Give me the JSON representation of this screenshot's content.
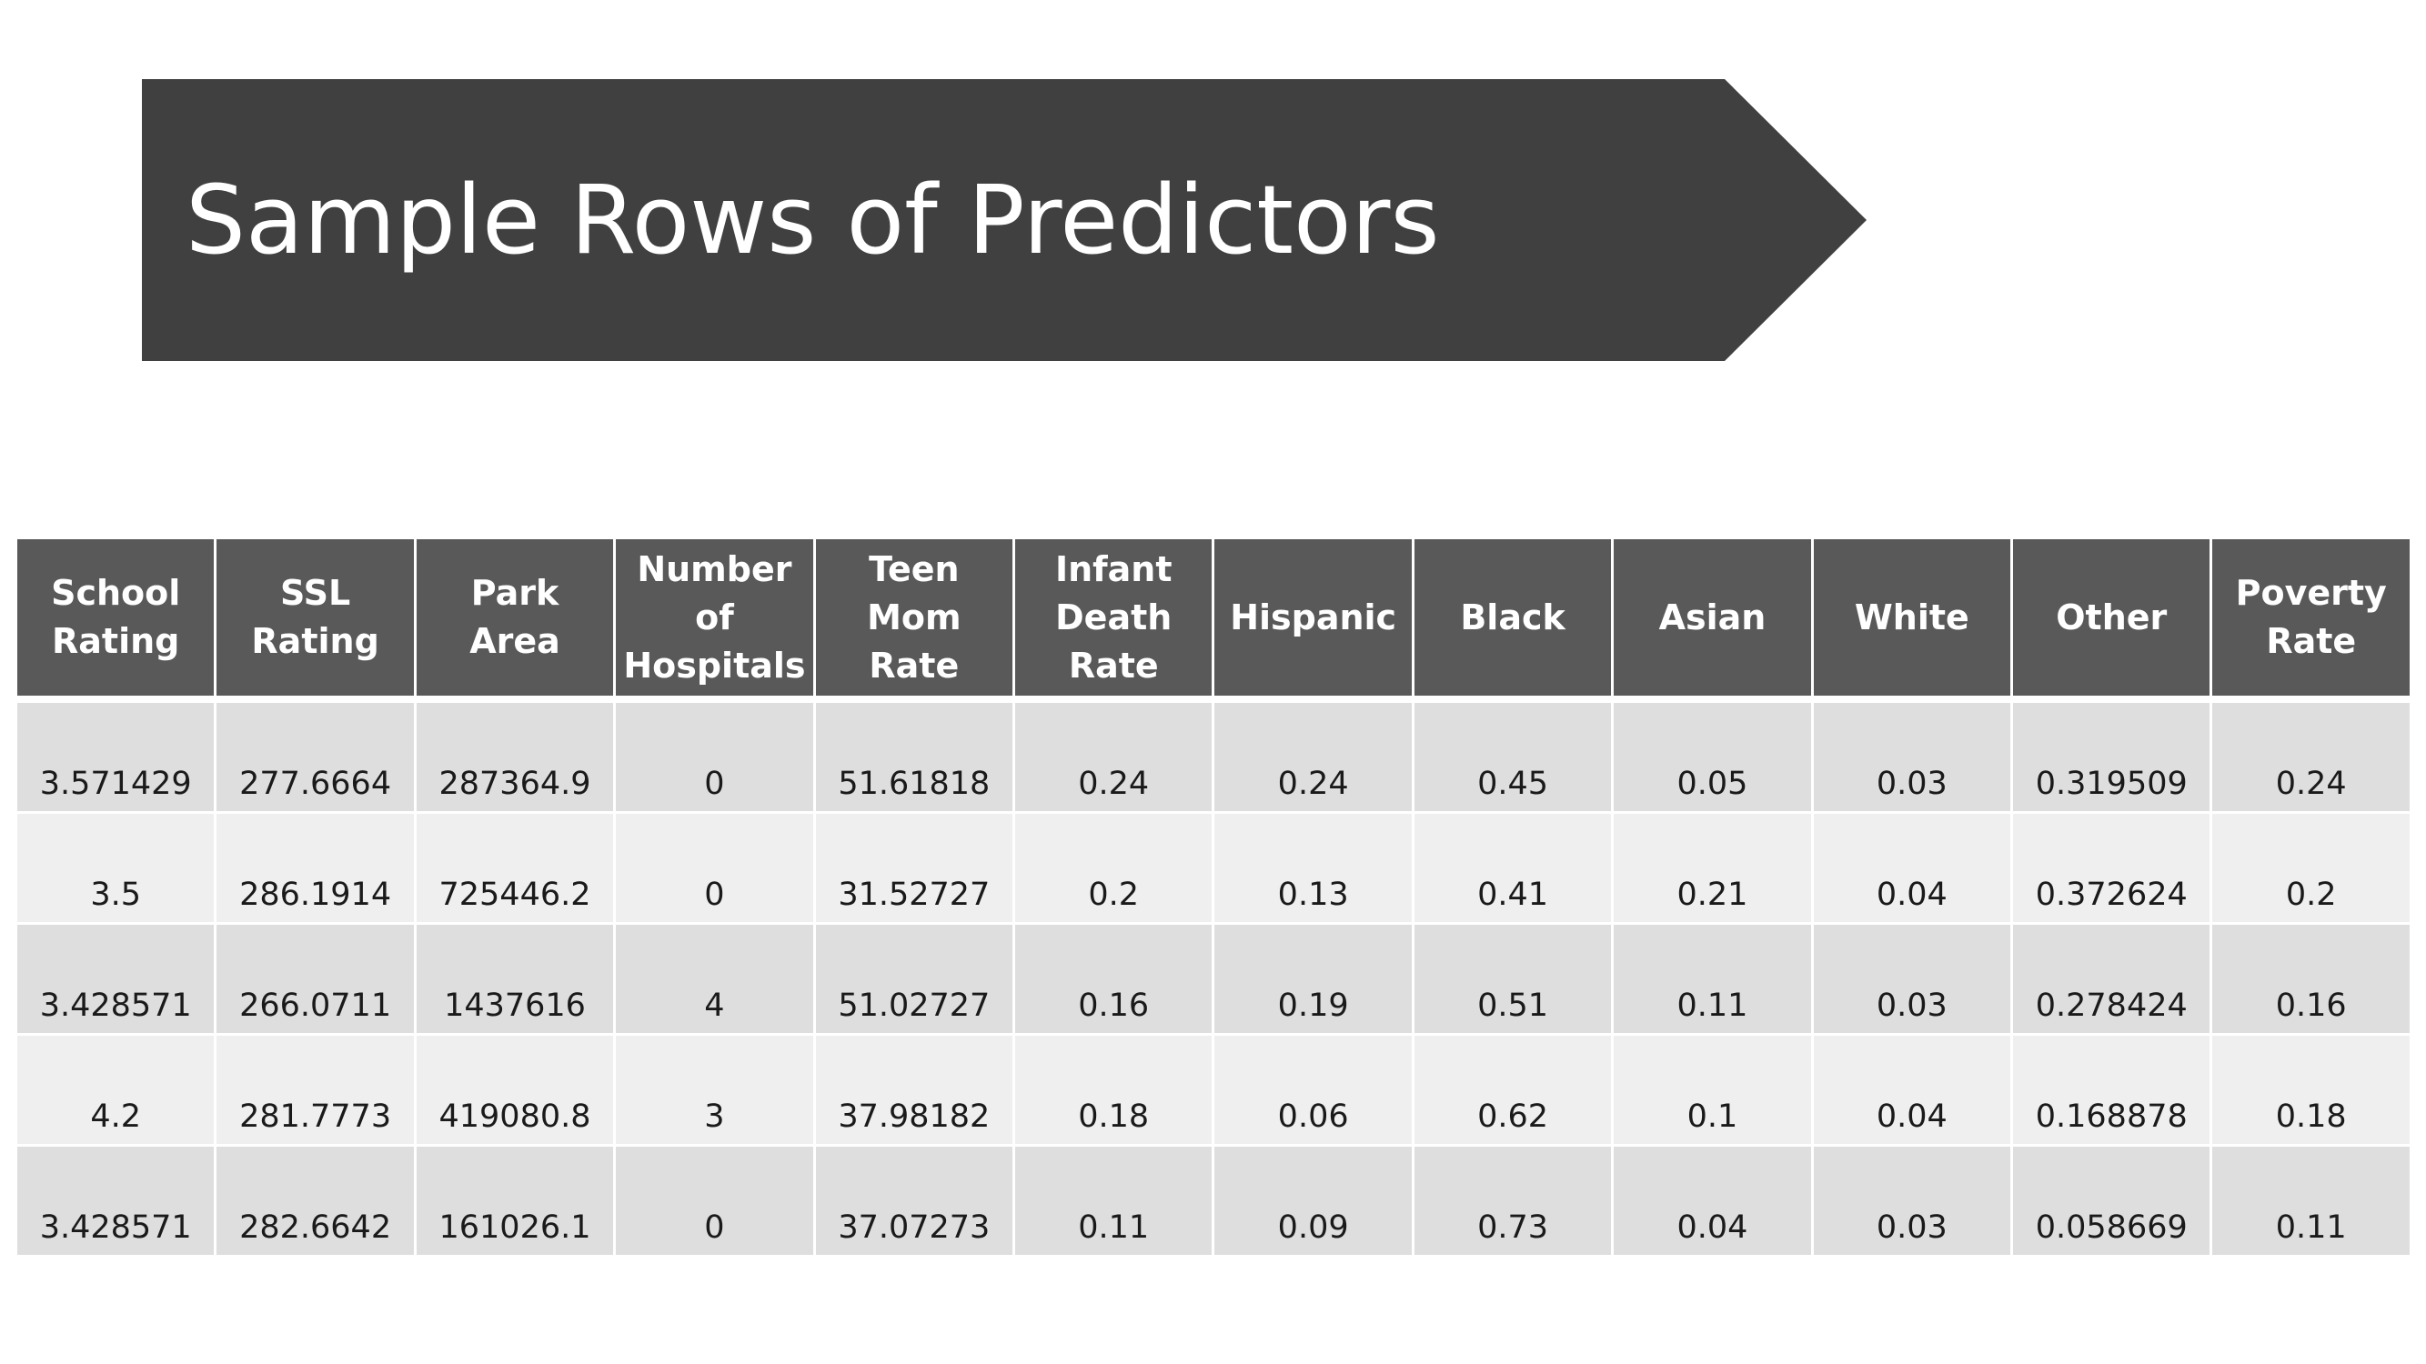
{
  "slide": {
    "title": "Sample Rows of Predictors"
  },
  "colors": {
    "banner": "#404040",
    "header_fill": "#595959",
    "row_odd": "#dedede",
    "row_even": "#efefef"
  },
  "table": {
    "headers": [
      [
        "School",
        "Rating"
      ],
      [
        "SSL",
        "Rating"
      ],
      [
        "Park Area"
      ],
      [
        "Number",
        "of",
        "Hospitals"
      ],
      [
        "Teen",
        "Mom",
        "Rate"
      ],
      [
        "Infant",
        "Death",
        "Rate"
      ],
      [
        "Hispanic"
      ],
      [
        "Black"
      ],
      [
        "Asian"
      ],
      [
        "White"
      ],
      [
        "Other"
      ],
      [
        "Poverty",
        "Rate"
      ]
    ],
    "rows": [
      [
        "3.571429",
        "277.6664",
        "287364.9",
        "0",
        "51.61818",
        "0.24",
        "0.24",
        "0.45",
        "0.05",
        "0.03",
        "0.319509",
        "0.24"
      ],
      [
        "3.5",
        "286.1914",
        "725446.2",
        "0",
        "31.52727",
        "0.2",
        "0.13",
        "0.41",
        "0.21",
        "0.04",
        "0.372624",
        "0.2"
      ],
      [
        "3.428571",
        "266.0711",
        "1437616",
        "4",
        "51.02727",
        "0.16",
        "0.19",
        "0.51",
        "0.11",
        "0.03",
        "0.278424",
        "0.16"
      ],
      [
        "4.2",
        "281.7773",
        "419080.8",
        "3",
        "37.98182",
        "0.18",
        "0.06",
        "0.62",
        "0.1",
        "0.04",
        "0.168878",
        "0.18"
      ],
      [
        "3.428571",
        "282.6642",
        "161026.1",
        "0",
        "37.07273",
        "0.11",
        "0.09",
        "0.73",
        "0.04",
        "0.03",
        "0.058669",
        "0.11"
      ]
    ]
  }
}
